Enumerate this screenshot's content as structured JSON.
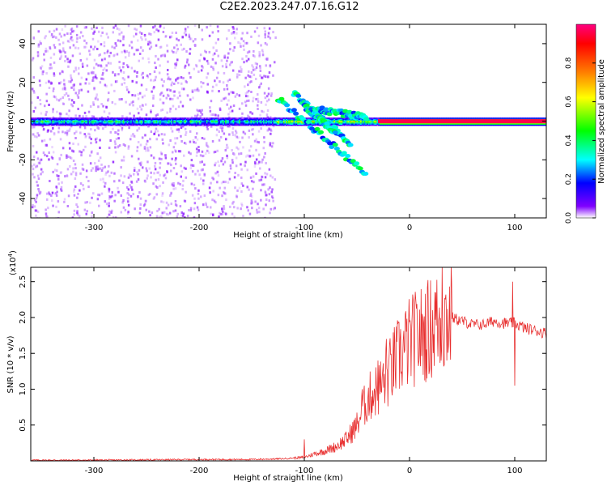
{
  "title": "C2E2.2023.247.07.16.G12",
  "chart_data": [
    {
      "type": "heatmap",
      "title": "C2E2.2023.247.07.16.G12",
      "xlabel": "Height of straight line (km)",
      "ylabel": "Frequency (Hz)",
      "xlim": [
        -360,
        130
      ],
      "ylim": [
        -50,
        50
      ],
      "xticks": [
        -300,
        -200,
        -100,
        0,
        100
      ],
      "yticks": [
        -40,
        -20,
        0,
        20,
        40
      ],
      "colorbar": {
        "label": "Normalized spectral amplitude",
        "range": [
          0.0,
          1.0
        ],
        "ticks": [
          0.0,
          0.2,
          0.4,
          0.6,
          0.8
        ],
        "colormap": [
          "#ffffff",
          "#8000ff",
          "#0000ff",
          "#00ffff",
          "#00ff00",
          "#ffff00",
          "#ff8000",
          "#ff0000",
          "#ff0080"
        ]
      },
      "features": [
        {
          "name": "scattered low-amplitude noise",
          "x_range": [
            -360,
            -130
          ],
          "y_range": [
            -50,
            50
          ],
          "amplitude": 0.1
        },
        {
          "name": "central band",
          "x_range": [
            -360,
            130
          ],
          "y_center": 0,
          "amplitude_start": 0.3,
          "amplitude_end": 1.0
        },
        {
          "name": "branching tails",
          "x_range": [
            -130,
            -30
          ],
          "y_range": [
            -28,
            15
          ],
          "amplitude": 0.4
        },
        {
          "name": "saturated band",
          "x_range": [
            -30,
            130
          ],
          "y_center": 0,
          "amplitude": 1.0
        }
      ]
    },
    {
      "type": "line",
      "xlabel": "Height of straight line (km)",
      "ylabel": "SNR (10 * v/v)",
      "multiplier": "(x10",
      "multiplier_exponent": "4",
      "multiplier_close": ")",
      "xlim": [
        -360,
        130
      ],
      "ylim": [
        0,
        2.7
      ],
      "xticks": [
        -300,
        -200,
        -100,
        0,
        100
      ],
      "yticks": [
        0.5,
        1.0,
        1.5,
        2.0,
        2.5
      ],
      "ytick_labels": [
        "0.5",
        "1.0",
        "1.5",
        "2.0",
        "2.5"
      ],
      "color": "#e83030",
      "series": [
        {
          "x": [
            -360,
            -300,
            -250,
            -200,
            -150,
            -120,
            -100,
            -90,
            -80,
            -70,
            -60,
            -50,
            -45,
            -40,
            -35,
            -30,
            -25,
            -20,
            -15,
            -10,
            -5,
            0,
            10,
            20,
            30,
            40,
            50,
            60,
            70,
            80,
            90,
            100,
            110,
            120,
            130
          ],
          "values": [
            0.01,
            0.01,
            0.015,
            0.02,
            0.02,
            0.03,
            0.05,
            0.1,
            0.14,
            0.2,
            0.3,
            0.5,
            0.7,
            0.85,
            0.95,
            1.0,
            1.1,
            1.2,
            1.35,
            1.45,
            1.55,
            1.65,
            1.75,
            1.85,
            1.95,
            2.0,
            1.95,
            1.9,
            1.9,
            1.95,
            1.92,
            1.92,
            1.85,
            1.82,
            1.78
          ]
        }
      ],
      "spikes": [
        {
          "x": -100,
          "value": 0.3
        },
        {
          "x": -45,
          "value": 1.0
        },
        {
          "x": -30,
          "value": 1.4
        },
        {
          "x": -22,
          "value": 1.7
        },
        {
          "x": 12,
          "value": 2.05
        },
        {
          "x": 25,
          "value": 2.35
        },
        {
          "x": 31,
          "value": 2.7
        },
        {
          "x": 40,
          "value": 2.5
        },
        {
          "x": 98,
          "value": 2.5
        },
        {
          "x": 100,
          "value": 1.05
        }
      ]
    }
  ]
}
